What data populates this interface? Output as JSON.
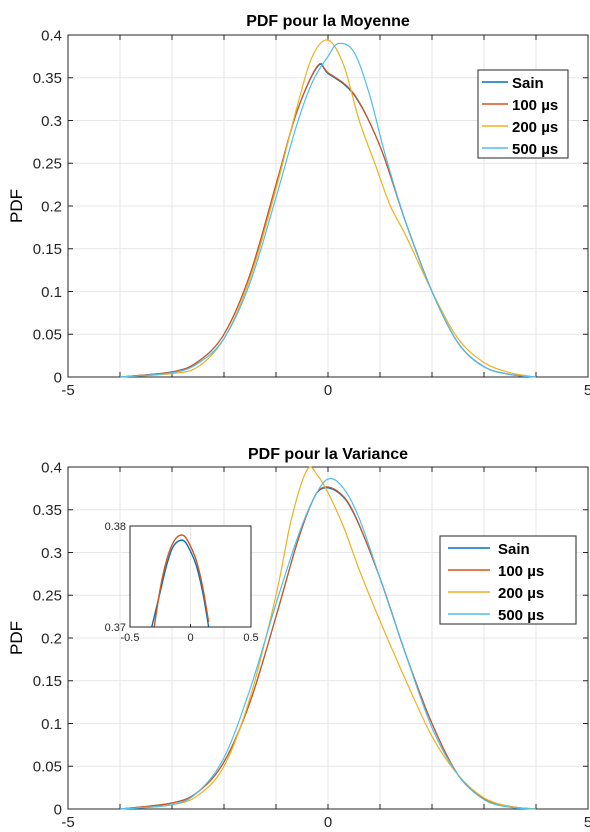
{
  "colors": {
    "sain": "#0072BD",
    "us100": "#D95319",
    "us200": "#EDB120",
    "us500": "#4DBEEE",
    "grid": "#e6e6e6",
    "axis": "#262626"
  },
  "chart_data": [
    {
      "type": "line",
      "title": "PDF pour la Moyenne",
      "xlabel": "",
      "ylabel": "PDF",
      "xlim": [
        -5,
        5
      ],
      "ylim": [
        0,
        0.4
      ],
      "grid": true,
      "legend_position": "top-right",
      "x_ticks": [
        "-5",
        "0",
        "5"
      ],
      "y_ticks": [
        "0",
        "0.05",
        "0.1",
        "0.15",
        "0.2",
        "0.25",
        "0.3",
        "0.35",
        "0.4"
      ],
      "series": [
        {
          "name": "Sain",
          "x": [
            -4,
            -3,
            -2.5,
            -2,
            -1.5,
            -1,
            -0.6,
            -0.2,
            0,
            0.5,
            1,
            1.5,
            2,
            2.5,
            3,
            3.5,
            4
          ],
          "y": [
            0.0,
            0.006,
            0.018,
            0.05,
            0.12,
            0.225,
            0.31,
            0.363,
            0.355,
            0.33,
            0.27,
            0.18,
            0.1,
            0.04,
            0.012,
            0.003,
            0.0
          ]
        },
        {
          "name": "100 µs",
          "x": [
            -4,
            -3,
            -2.5,
            -2,
            -1.5,
            -1,
            -0.6,
            -0.2,
            0,
            0.5,
            1,
            1.5,
            2,
            2.5,
            3,
            3.5,
            4
          ],
          "y": [
            0.0,
            0.006,
            0.018,
            0.05,
            0.12,
            0.225,
            0.31,
            0.364,
            0.356,
            0.331,
            0.27,
            0.18,
            0.1,
            0.04,
            0.012,
            0.003,
            0.0
          ]
        },
        {
          "name": "200 µs",
          "x": [
            -4,
            -3,
            -2.5,
            -2,
            -1.5,
            -1,
            -0.6,
            -0.3,
            0,
            0.3,
            0.6,
            0.9,
            1.2,
            1.5,
            2,
            2.5,
            3,
            3.5,
            4
          ],
          "y": [
            0.0,
            0.004,
            0.012,
            0.045,
            0.115,
            0.22,
            0.315,
            0.375,
            0.394,
            0.365,
            0.3,
            0.25,
            0.2,
            0.165,
            0.1,
            0.045,
            0.017,
            0.005,
            0.0
          ]
        },
        {
          "name": "500 µs",
          "x": [
            -4,
            -3,
            -2.5,
            -2,
            -1.5,
            -1,
            -0.6,
            -0.3,
            0,
            0.2,
            0.5,
            0.8,
            1.1,
            1.5,
            2,
            2.5,
            3,
            3.5,
            4
          ],
          "y": [
            0.0,
            0.005,
            0.016,
            0.045,
            0.11,
            0.21,
            0.295,
            0.345,
            0.375,
            0.39,
            0.38,
            0.33,
            0.26,
            0.18,
            0.1,
            0.04,
            0.012,
            0.003,
            0.0
          ]
        }
      ]
    },
    {
      "type": "line",
      "title": "PDF pour la Variance",
      "xlabel": "",
      "ylabel": "PDF",
      "xlim": [
        -5,
        5
      ],
      "ylim": [
        0,
        0.4
      ],
      "grid": true,
      "legend_position": "top-right",
      "x_ticks": [
        "-5",
        "0",
        "5"
      ],
      "y_ticks": [
        "0",
        "0.05",
        "0.1",
        "0.15",
        "0.2",
        "0.25",
        "0.3",
        "0.35",
        "0.4"
      ],
      "series": [
        {
          "name": "Sain",
          "x": [
            -4,
            -3,
            -2.5,
            -2,
            -1.5,
            -1,
            -0.6,
            -0.3,
            -0.1,
            0.2,
            0.5,
            1,
            1.5,
            2,
            2.5,
            3,
            3.5,
            4
          ],
          "y": [
            0.0,
            0.007,
            0.02,
            0.055,
            0.125,
            0.225,
            0.31,
            0.36,
            0.375,
            0.37,
            0.345,
            0.27,
            0.18,
            0.1,
            0.04,
            0.012,
            0.003,
            0.0
          ]
        },
        {
          "name": "100 µs",
          "x": [
            -4,
            -3,
            -2.5,
            -2,
            -1.5,
            -1,
            -0.6,
            -0.3,
            -0.1,
            0.2,
            0.5,
            1,
            1.5,
            2,
            2.5,
            3,
            3.5,
            4
          ],
          "y": [
            0.0,
            0.007,
            0.02,
            0.055,
            0.125,
            0.225,
            0.31,
            0.36,
            0.376,
            0.371,
            0.346,
            0.27,
            0.18,
            0.1,
            0.04,
            0.012,
            0.003,
            0.0
          ]
        },
        {
          "name": "200 µs",
          "x": [
            -4,
            -3,
            -2.5,
            -2,
            -1.5,
            -1,
            -0.7,
            -0.4,
            -0.2,
            0,
            0.3,
            0.6,
            1,
            1.5,
            2,
            2.5,
            3,
            3.5,
            4
          ],
          "y": [
            0.0,
            0.005,
            0.016,
            0.05,
            0.13,
            0.25,
            0.34,
            0.397,
            0.39,
            0.37,
            0.33,
            0.28,
            0.22,
            0.15,
            0.085,
            0.04,
            0.013,
            0.003,
            0.0
          ]
        },
        {
          "name": "500 µs",
          "x": [
            -4,
            -3,
            -2.5,
            -2,
            -1.5,
            -1,
            -0.6,
            -0.3,
            0,
            0.3,
            0.6,
            1,
            1.5,
            2,
            2.5,
            3,
            3.5,
            4
          ],
          "y": [
            0.0,
            0.005,
            0.02,
            0.06,
            0.14,
            0.24,
            0.315,
            0.36,
            0.386,
            0.375,
            0.34,
            0.27,
            0.18,
            0.095,
            0.04,
            0.011,
            0.002,
            0.0
          ]
        }
      ],
      "inset": {
        "xlim": [
          -0.5,
          0.5
        ],
        "ylim": [
          0.37,
          0.38
        ],
        "x_ticks": [
          "-0.5",
          "0",
          "0.5"
        ],
        "y_ticks": [
          "0.37",
          "0.38"
        ],
        "series": [
          {
            "name": "Sain",
            "x": [
              -0.32,
              -0.25,
              -0.2,
              -0.15,
              -0.1,
              -0.05,
              0.0,
              0.05,
              0.1,
              0.15
            ],
            "y": [
              0.37,
              0.3735,
              0.376,
              0.3778,
              0.3785,
              0.3785,
              0.3775,
              0.376,
              0.3735,
              0.37
            ]
          },
          {
            "name": "100 µs",
            "x": [
              -0.3,
              -0.25,
              -0.2,
              -0.15,
              -0.1,
              -0.05,
              0.0,
              0.05,
              0.1,
              0.15
            ],
            "y": [
              0.37,
              0.3738,
              0.3765,
              0.3782,
              0.379,
              0.379,
              0.378,
              0.3765,
              0.374,
              0.3705
            ]
          }
        ]
      }
    }
  ]
}
